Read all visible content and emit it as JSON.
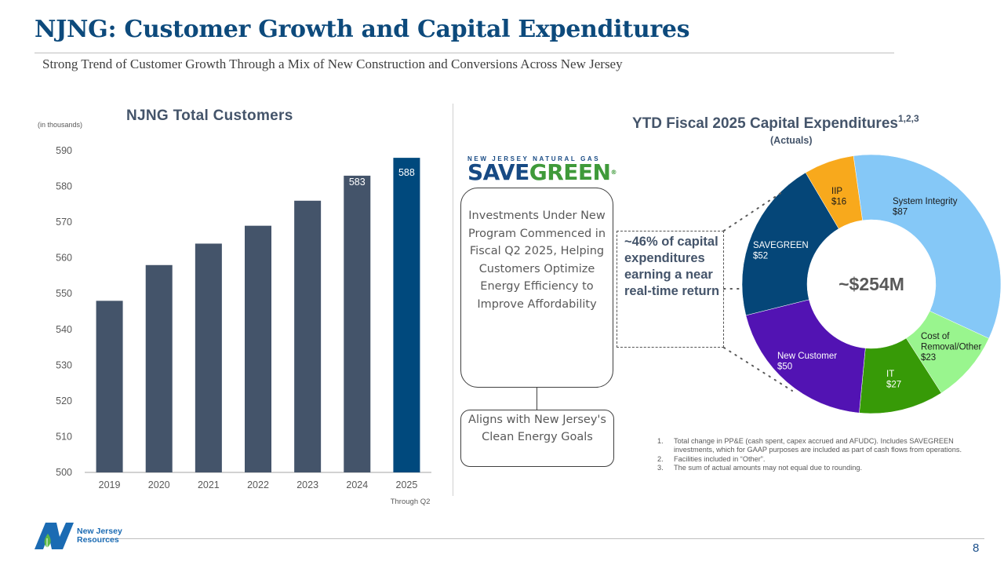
{
  "header": {
    "title": "NJNG: Customer Growth and Capital Expenditures",
    "subtitle": "Strong Trend of Customer Growth Through a Mix of New Construction and Conversions Across New Jersey"
  },
  "savegreen": {
    "logo_top": "NEW JERSEY NATURAL GAS",
    "logo_save": "SAVE",
    "logo_green": "GREEN",
    "logo_reg": "®",
    "main_box": "Investments Under New Program Commenced in Fiscal Q2 2025, Helping Customers Optimize Energy Efficiency to Improve Affordability",
    "goals_box": "Aligns with New Jersey's Clean Energy Goals",
    "callout": "~46% of capital expenditures earning a near real-time return"
  },
  "colors": {
    "bar_default": "#44546a",
    "bar_highlight": "#00497d",
    "axis": "#a6a6a6"
  },
  "chart_data": [
    {
      "type": "bar",
      "title": "NJNG Total Customers",
      "unit_label": "(in thousands)",
      "categories": [
        "2019",
        "2020",
        "2021",
        "2022",
        "2023",
        "2024",
        "2025"
      ],
      "category_note": {
        "2025": "Through Q2"
      },
      "values": [
        548,
        558,
        564,
        569,
        576,
        583,
        588
      ],
      "data_labels": [
        "548",
        "558",
        "564",
        "569",
        "576",
        "583",
        "588"
      ],
      "highlight_index": 6,
      "ylim": [
        500,
        590
      ],
      "yticks": [
        500,
        510,
        520,
        530,
        540,
        550,
        560,
        570,
        580,
        590
      ],
      "xlabel": "",
      "ylabel": "",
      "grid": false
    },
    {
      "type": "pie",
      "style": "donut",
      "title": "YTD Fiscal 2025 Capital Expenditures",
      "title_superscript": "1,2,3",
      "subtitle": "(Actuals)",
      "center_label": "~$254M",
      "unit": "$M",
      "slices": [
        {
          "name": "System Integrity",
          "label_lines": [
            "System Integrity",
            "$87"
          ],
          "value": 87,
          "color": "#85c8f7",
          "text_color": "#1a1a1a"
        },
        {
          "name": "Cost of Removal/Other",
          "label_lines": [
            "Cost of",
            "Removal/Other",
            "$23"
          ],
          "value": 23,
          "color": "#99f58e",
          "text_color": "#1a1a1a"
        },
        {
          "name": "IT",
          "label_lines": [
            "IT",
            "$27"
          ],
          "value": 27,
          "color": "#379a07",
          "text_color": "#ffffff"
        },
        {
          "name": "New Customer",
          "label_lines": [
            "New Customer",
            "$50"
          ],
          "value": 50,
          "color": "#5213b3",
          "text_color": "#ffffff"
        },
        {
          "name": "SAVEGREEN",
          "label_lines": [
            "SAVEGREEN",
            "$52"
          ],
          "value": 52,
          "color": "#054678",
          "text_color": "#ffffff"
        },
        {
          "name": "IIP",
          "label_lines": [
            "IIP",
            "$16"
          ],
          "value": 16,
          "color": "#f8a91c",
          "text_color": "#1a1a1a"
        }
      ],
      "legend": "none"
    }
  ],
  "footnotes": [
    {
      "num": "1.",
      "text": "Total change in PP&E (cash spent, capex accrued and AFUDC). Includes SAVEGREEN investments, which for GAAP purposes are included as part of cash flows from operations."
    },
    {
      "num": "2.",
      "text": "Facilities included in “Other”."
    },
    {
      "num": "3.",
      "text": "The sum of actual amounts may not equal due to rounding."
    }
  ],
  "footer": {
    "logo_line1": "New Jersey",
    "logo_line2": "Resources",
    "page_number": "8"
  }
}
